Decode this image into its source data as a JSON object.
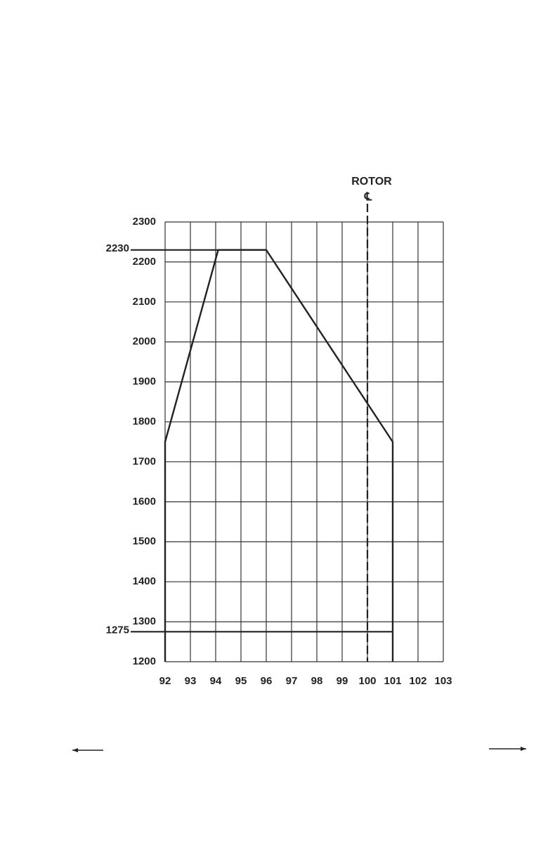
{
  "chart_data": {
    "type": "line",
    "xlim": [
      92,
      103
    ],
    "ylim": [
      1200,
      2300
    ],
    "xticks": [
      92,
      93,
      94,
      95,
      96,
      97,
      98,
      99,
      100,
      101,
      102,
      103
    ],
    "yticks": [
      1200,
      1300,
      1400,
      1500,
      1600,
      1700,
      1800,
      1900,
      2000,
      2100,
      2200,
      2300
    ],
    "grid": true,
    "series": [
      {
        "color": "#222222",
        "x": [
          92,
          92,
          94.1,
          96,
          101,
          101
        ],
        "values": [
          1200,
          1750,
          2230,
          2230,
          1750,
          1200
        ]
      }
    ],
    "hlines": [
      {
        "value": 2230,
        "xend": 96
      },
      {
        "value": 1275,
        "xend": 101
      }
    ],
    "vline": {
      "value": 100,
      "label": "ROTOR",
      "symbol": "℄"
    }
  }
}
